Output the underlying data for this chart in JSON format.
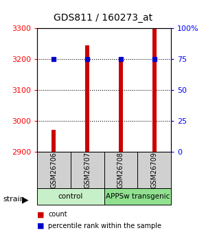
{
  "title": "GDS811 / 160273_at",
  "samples": [
    "GSM26706",
    "GSM26707",
    "GSM26708",
    "GSM26709"
  ],
  "counts": [
    2970,
    3245,
    3200,
    3300
  ],
  "percentiles": [
    75,
    75,
    75,
    75
  ],
  "ylim_left": [
    2900,
    3300
  ],
  "ylim_right": [
    0,
    100
  ],
  "yticks_left": [
    2900,
    3000,
    3100,
    3200,
    3300
  ],
  "yticks_right": [
    0,
    25,
    50,
    75,
    100
  ],
  "ytick_labels_right": [
    "0",
    "25",
    "50",
    "75",
    "100%"
  ],
  "groups": [
    {
      "label": "control",
      "samples": [
        0,
        1
      ],
      "color": "#c8f0c8"
    },
    {
      "label": "APPSw transgenic",
      "samples": [
        2,
        3
      ],
      "color": "#90e090"
    }
  ],
  "bar_color": "#cc0000",
  "dot_color": "#0000cc",
  "bar_width": 0.12,
  "grid_color": "#000000",
  "bg_color": "#ffffff",
  "sample_box_color": "#d0d0d0",
  "legend_items": [
    {
      "color": "#cc0000",
      "label": "count"
    },
    {
      "color": "#0000cc",
      "label": "percentile rank within the sample"
    }
  ]
}
